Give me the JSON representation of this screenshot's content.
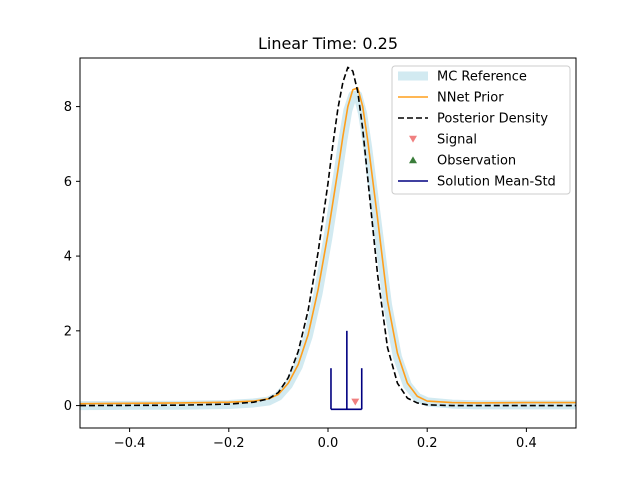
{
  "chart_data": {
    "type": "line",
    "title": "Linear Time: 0.25",
    "xlabel": "",
    "ylabel": "",
    "xlim": [
      -0.5,
      0.5
    ],
    "ylim": [
      -0.6,
      9.3
    ],
    "xticks": [
      -0.4,
      -0.2,
      0.0,
      0.2,
      0.4
    ],
    "xtick_labels": [
      "−0.4",
      "−0.2",
      "0.0",
      "0.2",
      "0.4"
    ],
    "yticks": [
      0,
      2,
      4,
      6,
      8
    ],
    "ytick_labels": [
      "0",
      "2",
      "4",
      "6",
      "8"
    ],
    "grid": false,
    "legend_position": "top-right",
    "series": [
      {
        "name": "MC Reference",
        "color": "#add8e6",
        "style": "thick-translucent",
        "x": [
          -0.5,
          -0.3,
          -0.2,
          -0.15,
          -0.12,
          -0.1,
          -0.08,
          -0.06,
          -0.04,
          -0.02,
          0.0,
          0.02,
          0.03,
          0.04,
          0.05,
          0.06,
          0.07,
          0.08,
          0.1,
          0.12,
          0.14,
          0.16,
          0.18,
          0.2,
          0.25,
          0.3,
          0.5
        ],
        "y": [
          0.0,
          0.01,
          0.03,
          0.07,
          0.12,
          0.25,
          0.55,
          1.05,
          1.85,
          3.0,
          4.5,
          6.2,
          7.1,
          7.9,
          8.3,
          8.3,
          7.8,
          6.9,
          4.8,
          2.7,
          1.3,
          0.55,
          0.22,
          0.1,
          0.04,
          0.02,
          0.02
        ]
      },
      {
        "name": "NNet Prior",
        "color": "#ff9f1c",
        "style": "solid",
        "x": [
          -0.5,
          -0.4,
          -0.3,
          -0.2,
          -0.15,
          -0.12,
          -0.1,
          -0.08,
          -0.06,
          -0.04,
          -0.02,
          0.0,
          0.02,
          0.03,
          0.04,
          0.05,
          0.06,
          0.07,
          0.08,
          0.1,
          0.12,
          0.14,
          0.16,
          0.18,
          0.2,
          0.25,
          0.3,
          0.4,
          0.5
        ],
        "y": [
          0.05,
          0.06,
          0.07,
          0.09,
          0.12,
          0.18,
          0.3,
          0.6,
          1.1,
          1.9,
          3.1,
          4.6,
          6.3,
          7.2,
          8.0,
          8.45,
          8.5,
          8.0,
          7.1,
          5.0,
          2.8,
          1.4,
          0.6,
          0.25,
          0.12,
          0.08,
          0.07,
          0.08,
          0.08
        ]
      },
      {
        "name": "Posterior Density",
        "color": "#000000",
        "style": "dashed",
        "x": [
          -0.5,
          -0.3,
          -0.2,
          -0.15,
          -0.12,
          -0.1,
          -0.08,
          -0.06,
          -0.04,
          -0.02,
          0.0,
          0.01,
          0.02,
          0.03,
          0.04,
          0.05,
          0.06,
          0.07,
          0.08,
          0.1,
          0.12,
          0.14,
          0.16,
          0.18,
          0.2,
          0.25,
          0.3,
          0.5
        ],
        "y": [
          0.0,
          0.01,
          0.04,
          0.09,
          0.18,
          0.35,
          0.75,
          1.45,
          2.55,
          4.1,
          5.95,
          7.0,
          7.95,
          8.65,
          9.05,
          8.95,
          8.4,
          7.4,
          6.1,
          3.5,
          1.55,
          0.6,
          0.2,
          0.07,
          0.02,
          0.0,
          0.0,
          0.0
        ]
      }
    ],
    "markers": [
      {
        "name": "Signal",
        "symbol": "triangle-down",
        "color": "#f08080",
        "x": [
          0.055
        ],
        "y": [
          0.1
        ]
      },
      {
        "name": "Observation",
        "symbol": "triangle-up",
        "color": "#3a7d3a",
        "x": [],
        "y": []
      }
    ],
    "mean_std": {
      "name": "Solution Mean-Std",
      "color": "#000080",
      "mean_x": 0.038,
      "std_lower_x": 0.006,
      "std_upper_x": 0.068,
      "mean_height": 2.0,
      "std_height": 1.0,
      "base_y": -0.1
    },
    "legend": [
      {
        "label": "MC Reference",
        "kind": "band",
        "color": "#add8e6"
      },
      {
        "label": "NNet Prior",
        "kind": "line",
        "color": "#ff9f1c"
      },
      {
        "label": "Posterior Density",
        "kind": "dashed",
        "color": "#000000"
      },
      {
        "label": "Signal",
        "kind": "triangle-down",
        "color": "#f08080"
      },
      {
        "label": "Observation",
        "kind": "triangle-up",
        "color": "#3a7d3a"
      },
      {
        "label": "Solution Mean-Std",
        "kind": "line",
        "color": "#000080"
      }
    ]
  }
}
